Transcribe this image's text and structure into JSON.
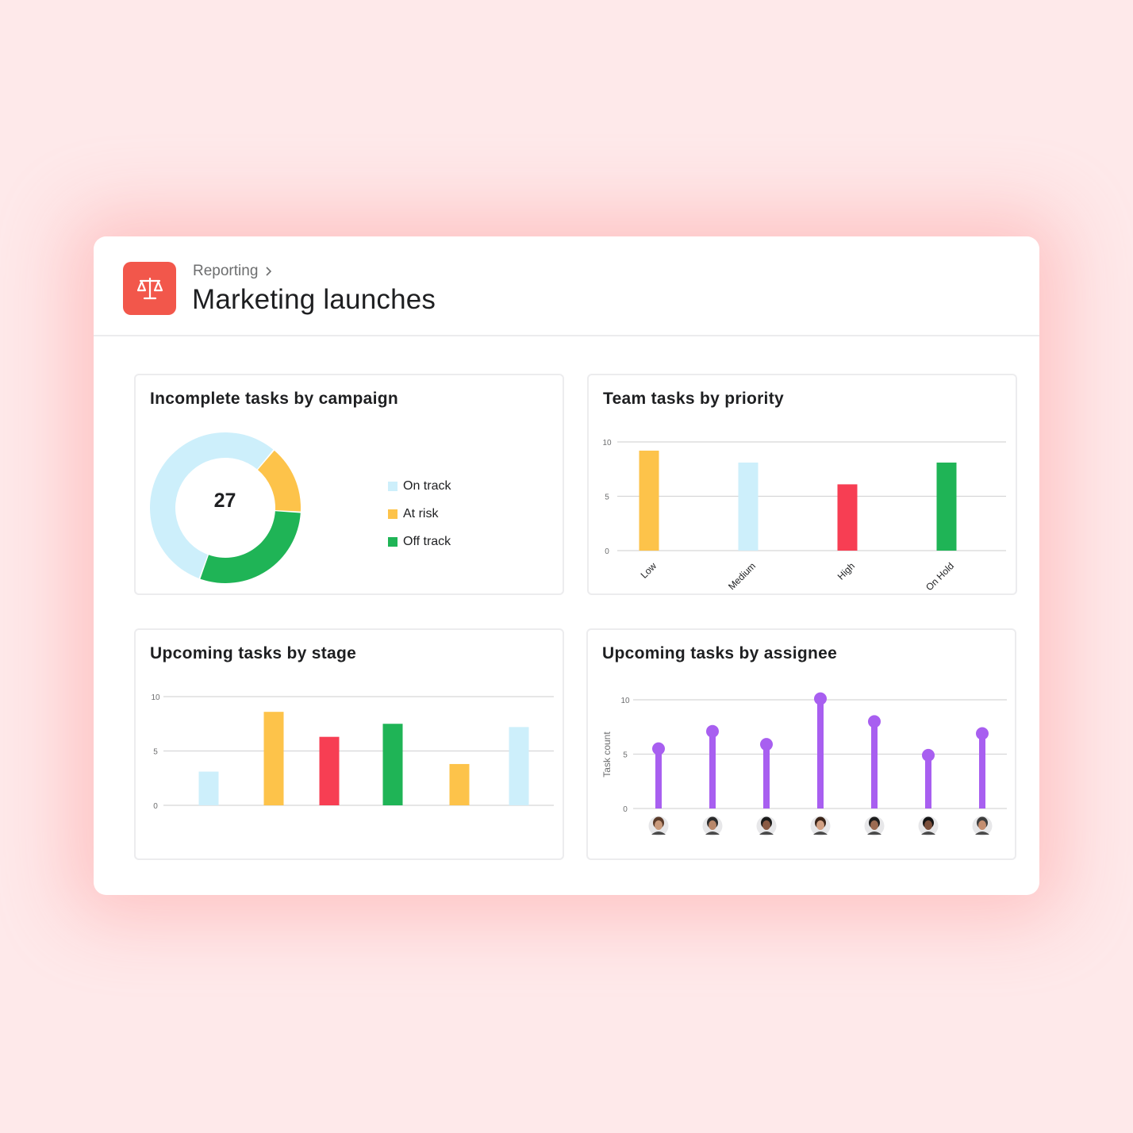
{
  "header": {
    "breadcrumb": "Reporting",
    "title": "Marketing launches",
    "icon": "scales-icon",
    "icon_color": "#f2574b"
  },
  "cards": {
    "campaign": {
      "title": "Incomplete tasks by campaign",
      "center_value": "27",
      "legend": [
        {
          "label": "On track",
          "color": "#cdeffb"
        },
        {
          "label": "At risk",
          "color": "#fdc34a"
        },
        {
          "label": "Off track",
          "color": "#1fb456"
        }
      ]
    },
    "priority": {
      "title": "Team tasks by priority"
    },
    "stage": {
      "title": "Upcoming tasks by stage"
    },
    "assignee": {
      "title": "Upcoming tasks by assignee",
      "ylabel": "Task count"
    }
  },
  "chart_data": [
    {
      "type": "pie",
      "title": "Incomplete tasks by campaign",
      "donut": true,
      "total": 27,
      "categories": [
        "On track",
        "At risk",
        "Off track"
      ],
      "values": [
        15,
        4,
        8
      ],
      "colors": [
        "#cdeffb",
        "#fdc34a",
        "#1fb456"
      ]
    },
    {
      "type": "bar",
      "title": "Team tasks by priority",
      "categories": [
        "Low",
        "Medium",
        "High",
        "On Hold"
      ],
      "values": [
        9.2,
        8.1,
        6.1,
        8.1
      ],
      "colors": [
        "#fdc34a",
        "#cdeffb",
        "#f73e53",
        "#1fb456"
      ],
      "yticks": [
        0,
        5,
        10
      ],
      "ylim": [
        0,
        10
      ],
      "grid": true
    },
    {
      "type": "bar",
      "title": "Upcoming tasks by stage",
      "categories": [
        "",
        "",
        "",
        "",
        "",
        ""
      ],
      "values": [
        3.1,
        8.6,
        6.3,
        7.5,
        3.8,
        7.2
      ],
      "colors": [
        "#cdeffb",
        "#fdc34a",
        "#f73e53",
        "#1fb456",
        "#fdc34a",
        "#cdeffb"
      ],
      "yticks": [
        0,
        5,
        10
      ],
      "ylim": [
        0,
        10
      ],
      "grid": true
    },
    {
      "type": "bar",
      "title": "Upcoming tasks by assignee",
      "ylabel": "Task count",
      "categories": [
        "",
        "",
        "",
        "",
        "",
        "",
        ""
      ],
      "values": [
        5.5,
        7.1,
        5.9,
        10.1,
        8.0,
        4.9,
        6.9
      ],
      "color": "#a85ff0",
      "yticks": [
        0,
        5,
        10
      ],
      "ylim": [
        0,
        10
      ],
      "grid": true,
      "avatars": 7
    }
  ]
}
